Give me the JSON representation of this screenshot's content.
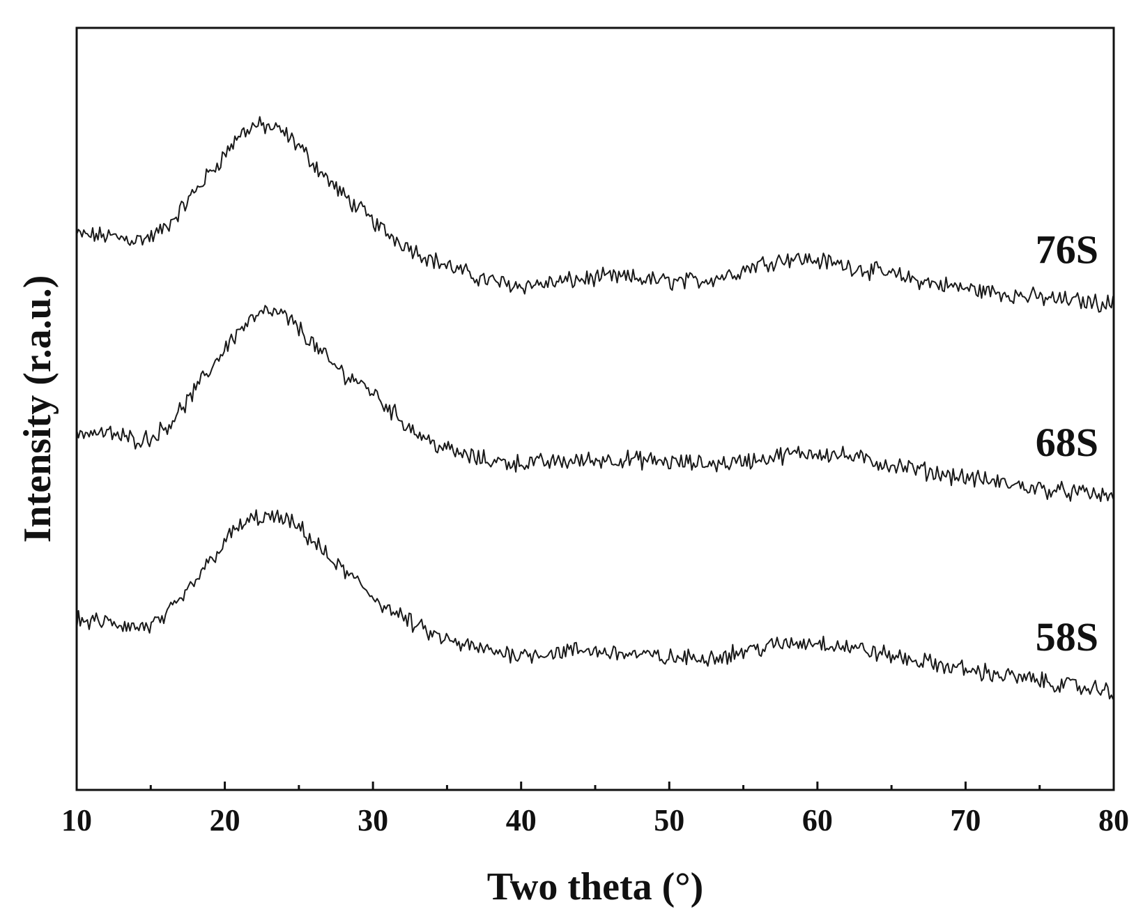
{
  "chart_data": {
    "type": "line",
    "xlabel": "Two theta (°)",
    "ylabel": "Intensity (r.a.u.)",
    "xlim": [
      10,
      80
    ],
    "ylim": [
      0,
      1
    ],
    "x_ticks": [
      10,
      20,
      30,
      40,
      50,
      60,
      70,
      80
    ],
    "x_minor_ticks": [
      15,
      25,
      35,
      45,
      55,
      65,
      75
    ],
    "y_ticks_shown": false,
    "grid": false,
    "legend": "none (series labelled at right edge)",
    "series": [
      {
        "name": "76S",
        "x": [
          10,
          12,
          14,
          15,
          16,
          17,
          18,
          19,
          20,
          21,
          22,
          23,
          24,
          25,
          26,
          27,
          28,
          29,
          30,
          31,
          32,
          33,
          34,
          35,
          36,
          37,
          38,
          39,
          40,
          42,
          44,
          46,
          48,
          50,
          52,
          54,
          56,
          58,
          60,
          62,
          64,
          66,
          68,
          70,
          72,
          74,
          76,
          78,
          80
        ],
        "y": [
          0.728,
          0.727,
          0.722,
          0.725,
          0.738,
          0.76,
          0.786,
          0.81,
          0.834,
          0.86,
          0.872,
          0.87,
          0.862,
          0.845,
          0.822,
          0.8,
          0.78,
          0.764,
          0.746,
          0.73,
          0.718,
          0.706,
          0.696,
          0.688,
          0.68,
          0.673,
          0.668,
          0.664,
          0.662,
          0.665,
          0.67,
          0.673,
          0.671,
          0.667,
          0.668,
          0.676,
          0.69,
          0.698,
          0.695,
          0.688,
          0.68,
          0.672,
          0.664,
          0.658,
          0.653,
          0.648,
          0.644,
          0.641,
          0.638
        ]
      },
      {
        "name": "68S",
        "x": [
          10,
          12,
          14,
          15,
          16,
          17,
          18,
          19,
          20,
          21,
          22,
          23,
          24,
          25,
          26,
          27,
          28,
          29,
          30,
          31,
          32,
          33,
          34,
          35,
          36,
          37,
          38,
          39,
          40,
          42,
          44,
          46,
          48,
          50,
          52,
          54,
          56,
          58,
          60,
          62,
          64,
          66,
          68,
          70,
          72,
          74,
          76,
          78,
          80
        ],
        "y": [
          0.47,
          0.468,
          0.46,
          0.462,
          0.476,
          0.498,
          0.524,
          0.552,
          0.58,
          0.604,
          0.62,
          0.628,
          0.622,
          0.606,
          0.584,
          0.563,
          0.547,
          0.536,
          0.522,
          0.502,
          0.484,
          0.468,
          0.456,
          0.447,
          0.44,
          0.435,
          0.432,
          0.43,
          0.429,
          0.43,
          0.432,
          0.434,
          0.433,
          0.43,
          0.428,
          0.429,
          0.434,
          0.44,
          0.443,
          0.438,
          0.43,
          0.423,
          0.416,
          0.41,
          0.404,
          0.398,
          0.393,
          0.389,
          0.385
        ]
      },
      {
        "name": "58S",
        "x": [
          10,
          12,
          14,
          15,
          16,
          17,
          18,
          19,
          20,
          21,
          22,
          23,
          24,
          25,
          26,
          27,
          28,
          29,
          30,
          31,
          32,
          33,
          34,
          35,
          36,
          37,
          38,
          39,
          40,
          42,
          44,
          46,
          48,
          50,
          52,
          54,
          56,
          58,
          60,
          62,
          64,
          66,
          68,
          70,
          72,
          74,
          76,
          78,
          80
        ],
        "y": [
          0.222,
          0.22,
          0.213,
          0.215,
          0.227,
          0.248,
          0.274,
          0.3,
          0.326,
          0.346,
          0.356,
          0.358,
          0.354,
          0.344,
          0.326,
          0.304,
          0.288,
          0.272,
          0.254,
          0.238,
          0.226,
          0.214,
          0.204,
          0.196,
          0.19,
          0.186,
          0.182,
          0.18,
          0.178,
          0.18,
          0.183,
          0.181,
          0.177,
          0.173,
          0.173,
          0.178,
          0.186,
          0.192,
          0.194,
          0.188,
          0.18,
          0.172,
          0.165,
          0.158,
          0.152,
          0.146,
          0.14,
          0.134,
          0.13
        ]
      }
    ]
  }
}
